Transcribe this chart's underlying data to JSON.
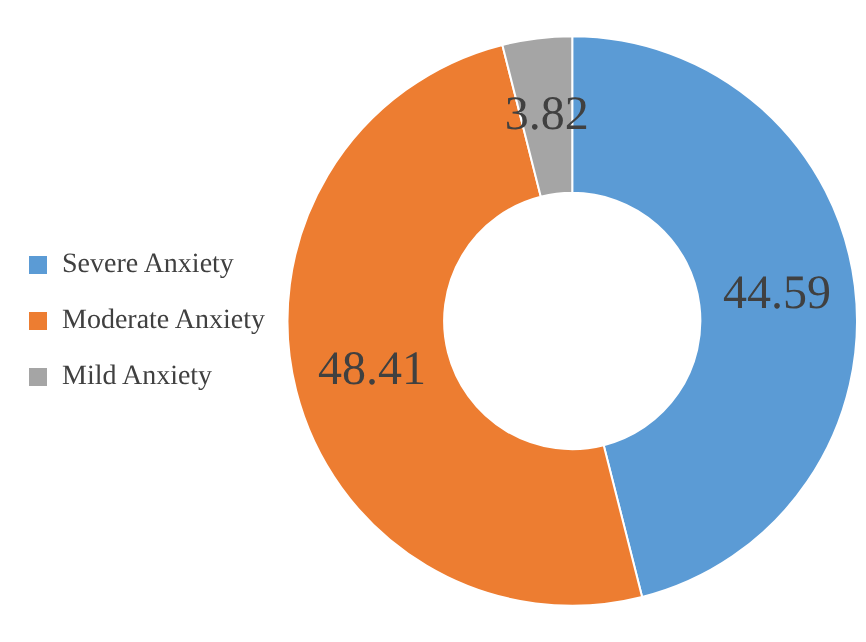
{
  "chart_data": {
    "type": "donut",
    "categories": [
      "Severe Anxiety",
      "Moderate Anxiety",
      "Mild Anxiety"
    ],
    "values": [
      44.59,
      48.41,
      3.82
    ],
    "colors": [
      "#5b9bd5",
      "#ed7d31",
      "#a5a5a5"
    ],
    "data_labels": true,
    "legend": "left"
  }
}
